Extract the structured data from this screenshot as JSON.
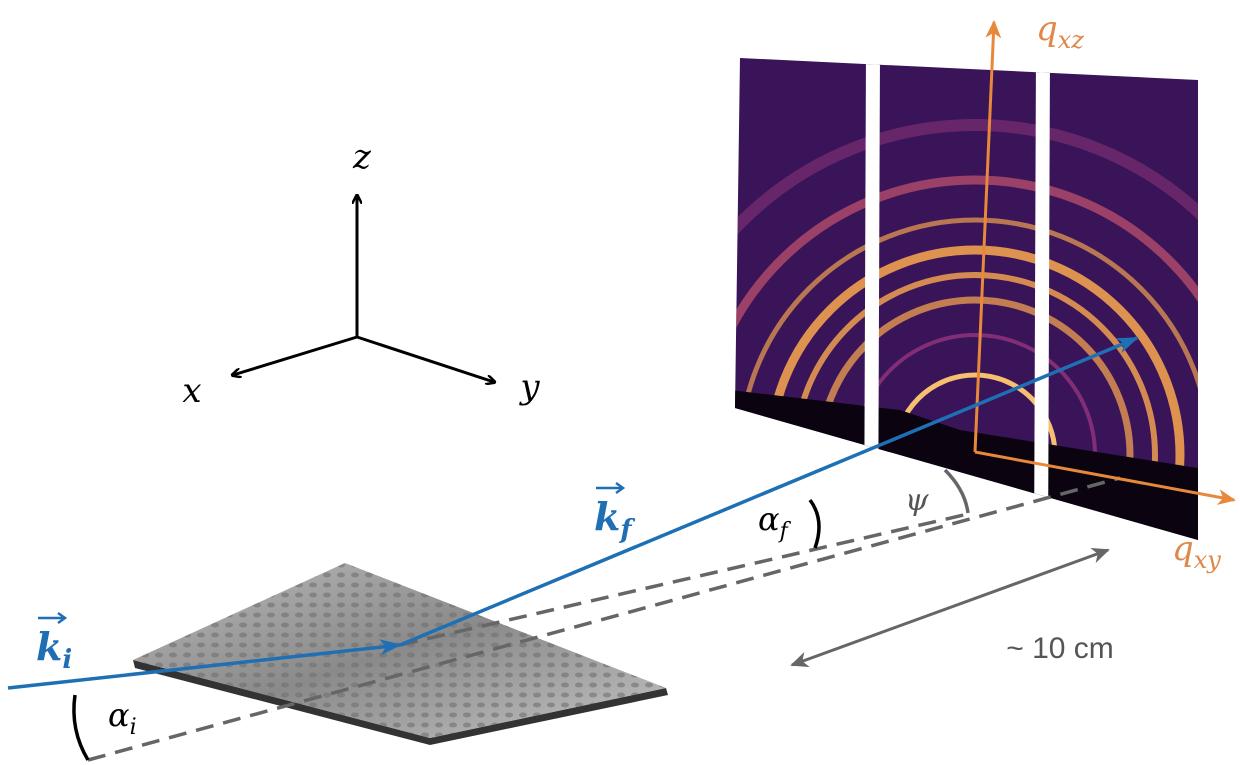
{
  "axes": {
    "z": "z",
    "x": "x",
    "y": "y"
  },
  "beams": {
    "incident": {
      "symbol": "k",
      "subscript": "i"
    },
    "exit": {
      "symbol": "k",
      "subscript": "f"
    }
  },
  "angles": {
    "incidence": {
      "symbol": "α",
      "subscript": "i"
    },
    "exit": {
      "symbol": "α",
      "subscript": "f"
    },
    "azimuth": "ψ"
  },
  "detector_axes": {
    "vertical": {
      "symbol": "q",
      "subscript": "xz"
    },
    "horizontal": {
      "symbol": "q",
      "subscript": "xy"
    }
  },
  "distance": "~ 10 cm"
}
